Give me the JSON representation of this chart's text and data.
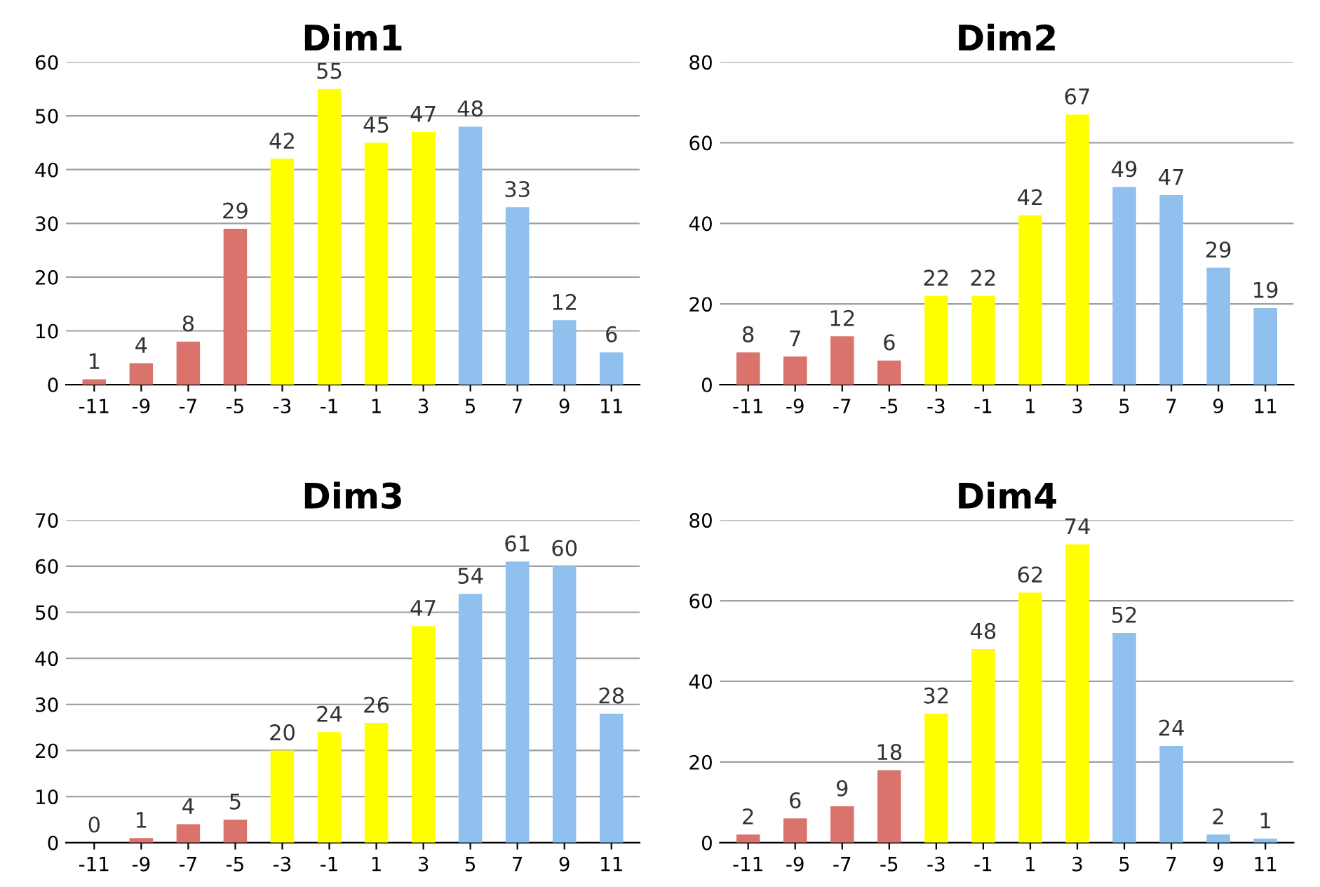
{
  "chart_data": [
    {
      "type": "bar",
      "title": "Dim1",
      "categories": [
        "-11",
        "-9",
        "-7",
        "-5",
        "-3",
        "-1",
        "1",
        "3",
        "5",
        "7",
        "9",
        "11"
      ],
      "values": [
        1,
        4,
        8,
        29,
        42,
        55,
        45,
        47,
        48,
        33,
        12,
        6
      ],
      "colors": [
        "#d9736b",
        "#d9736b",
        "#d9736b",
        "#d9736b",
        "#ffff00",
        "#ffff00",
        "#ffff00",
        "#ffff00",
        "#8fc0ee",
        "#8fc0ee",
        "#8fc0ee",
        "#8fc0ee"
      ],
      "ylim": [
        0,
        60
      ],
      "yticks": [
        0,
        10,
        20,
        30,
        40,
        50,
        60
      ],
      "grid": "y",
      "data_labels": true
    },
    {
      "type": "bar",
      "title": "Dim2",
      "categories": [
        "-11",
        "-9",
        "-7",
        "-5",
        "-3",
        "-1",
        "1",
        "3",
        "5",
        "7",
        "9",
        "11"
      ],
      "values": [
        8,
        7,
        12,
        6,
        22,
        22,
        42,
        67,
        49,
        47,
        29,
        19
      ],
      "colors": [
        "#d9736b",
        "#d9736b",
        "#d9736b",
        "#d9736b",
        "#ffff00",
        "#ffff00",
        "#ffff00",
        "#ffff00",
        "#8fc0ee",
        "#8fc0ee",
        "#8fc0ee",
        "#8fc0ee"
      ],
      "ylim": [
        0,
        80
      ],
      "yticks": [
        0,
        20,
        40,
        60,
        80
      ],
      "grid": "y",
      "data_labels": true
    },
    {
      "type": "bar",
      "title": "Dim3",
      "categories": [
        "-11",
        "-9",
        "-7",
        "-5",
        "-3",
        "-1",
        "1",
        "3",
        "5",
        "7",
        "9",
        "11"
      ],
      "values": [
        0,
        1,
        4,
        5,
        20,
        24,
        26,
        47,
        54,
        61,
        60,
        28
      ],
      "colors": [
        "#d9736b",
        "#d9736b",
        "#d9736b",
        "#d9736b",
        "#ffff00",
        "#ffff00",
        "#ffff00",
        "#ffff00",
        "#8fc0ee",
        "#8fc0ee",
        "#8fc0ee",
        "#8fc0ee"
      ],
      "ylim": [
        0,
        70
      ],
      "yticks": [
        0,
        10,
        20,
        30,
        40,
        50,
        60,
        70
      ],
      "grid": "y",
      "data_labels": true
    },
    {
      "type": "bar",
      "title": "Dim4",
      "categories": [
        "-11",
        "-9",
        "-7",
        "-5",
        "-3",
        "-1",
        "1",
        "3",
        "5",
        "7",
        "9",
        "11"
      ],
      "values": [
        2,
        6,
        9,
        18,
        32,
        48,
        62,
        74,
        52,
        24,
        2,
        1
      ],
      "colors": [
        "#d9736b",
        "#d9736b",
        "#d9736b",
        "#d9736b",
        "#ffff00",
        "#ffff00",
        "#ffff00",
        "#ffff00",
        "#8fc0ee",
        "#8fc0ee",
        "#8fc0ee",
        "#8fc0ee"
      ],
      "ylim": [
        0,
        80
      ],
      "yticks": [
        0,
        20,
        40,
        60,
        80
      ],
      "grid": "y",
      "data_labels": true
    }
  ]
}
